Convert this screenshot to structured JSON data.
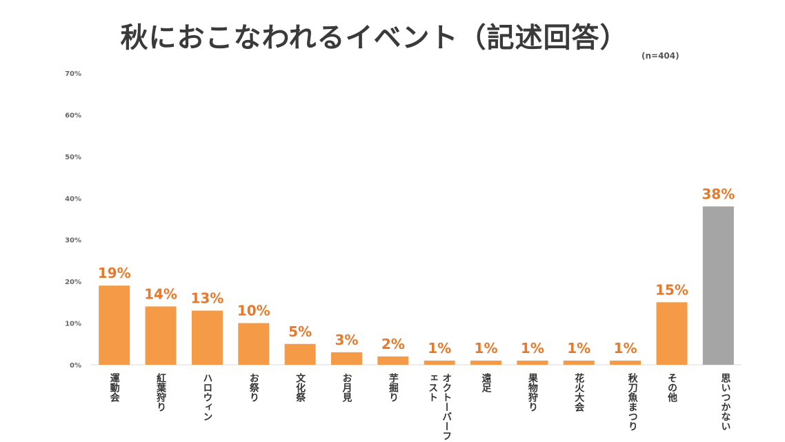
{
  "chart_data": {
    "type": "bar",
    "title": "秋におこなわれるイベント（記述回答）",
    "sample_size": "(n=404)",
    "categories": [
      "運動会",
      "紅葉狩り",
      "ハロウィン",
      "お祭り",
      "文化祭",
      "お月見",
      "芋掘り",
      "オクトーバーフェスト",
      "遠足",
      "果物狩り",
      "花火大会",
      "秋刀魚まつり",
      "その他",
      "思いつかない"
    ],
    "values": [
      19,
      14,
      13,
      10,
      5,
      3,
      2,
      1,
      1,
      1,
      1,
      1,
      15,
      38
    ],
    "value_labels": [
      "19%",
      "14%",
      "13%",
      "10%",
      "5%",
      "3%",
      "2%",
      "1%",
      "1%",
      "1%",
      "1%",
      "1%",
      "15%",
      "38%"
    ],
    "ylim": [
      0,
      70
    ],
    "yticks": [
      "0%",
      "10%",
      "20%",
      "30%",
      "40%",
      "50%",
      "60%",
      "70%"
    ],
    "grid": false,
    "colors": {
      "bar": "#f59a46",
      "highlight_bar": "#a5a5a5",
      "value_label": "#e8792b",
      "highlight_value_label": "#e8792b"
    },
    "highlight_index": 13
  }
}
